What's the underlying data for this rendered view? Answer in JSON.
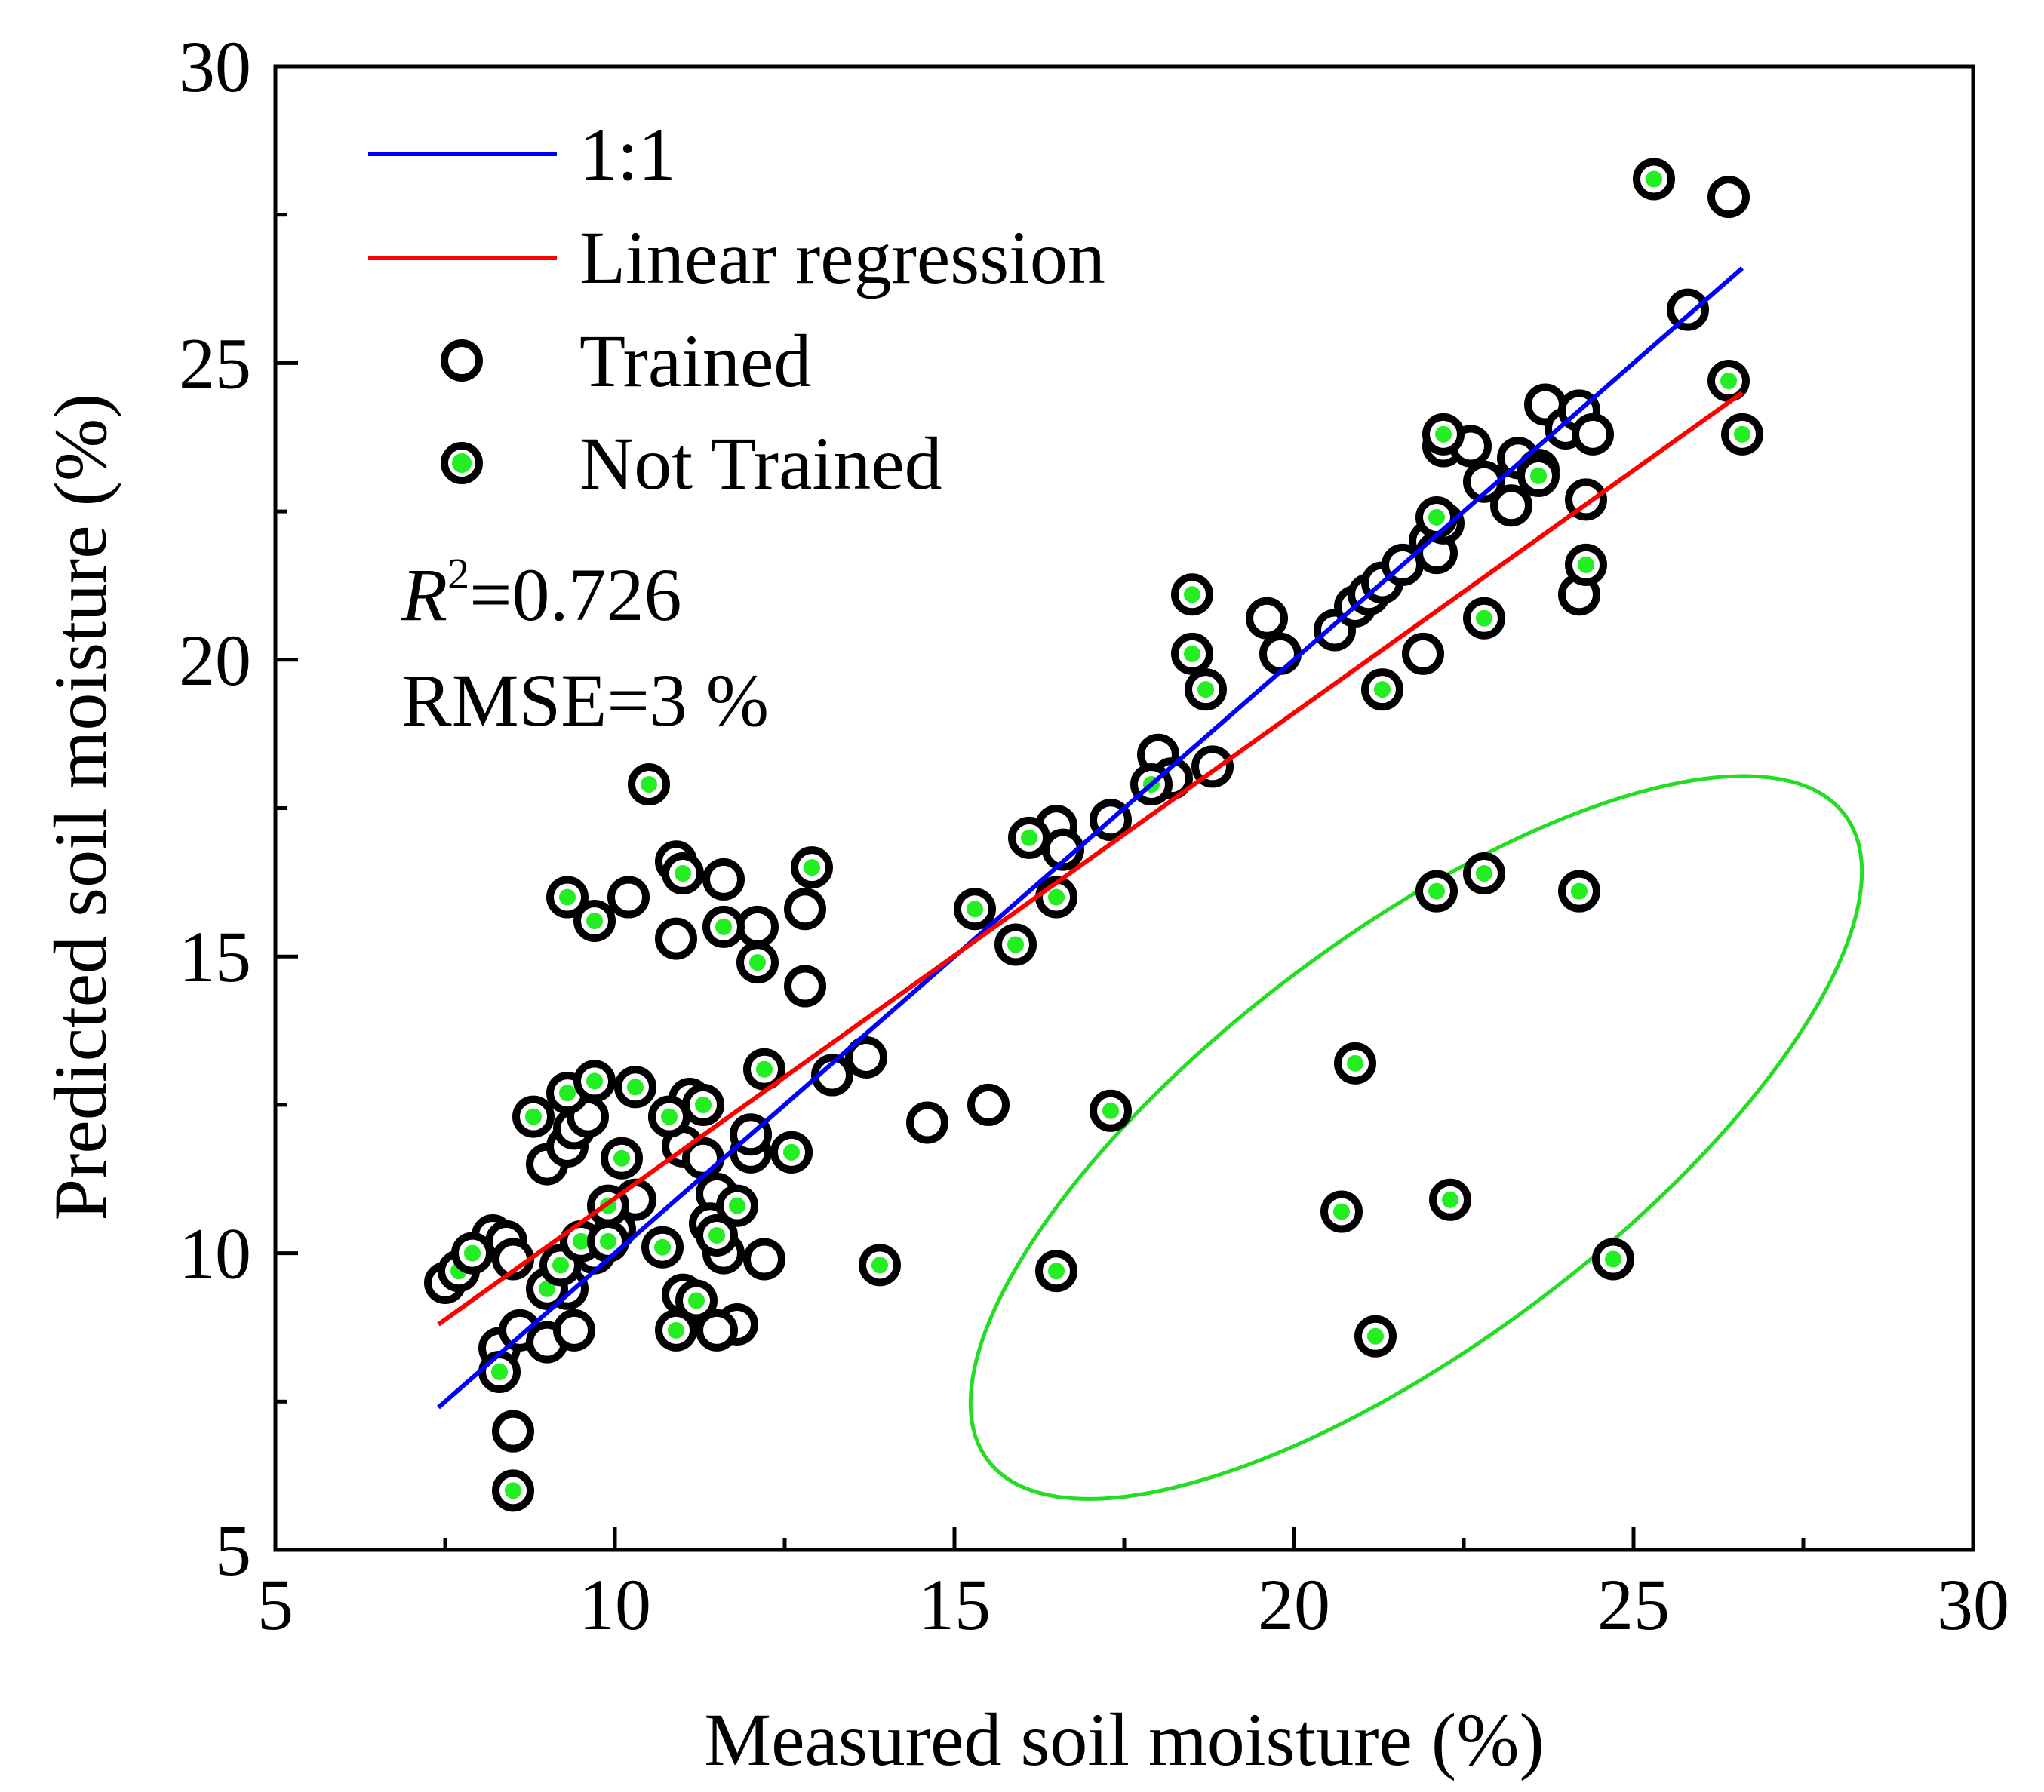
{
  "chart_data": {
    "type": "scatter",
    "xlabel": "Measured soil moisture (%)",
    "ylabel": "Predicted soil moisture (%)",
    "xlim": [
      5,
      30
    ],
    "ylim": [
      5,
      30
    ],
    "xticks": [
      5,
      10,
      15,
      20,
      25,
      30
    ],
    "yticks": [
      5,
      10,
      15,
      20,
      25,
      30
    ],
    "xtick_labels": [
      "5",
      "10",
      "15",
      "20",
      "25",
      "30"
    ],
    "ytick_labels": [
      "5",
      "10",
      "15",
      "20",
      "25",
      "30"
    ],
    "grid": false,
    "legend_position": "top-left",
    "legend": {
      "one_to_one": "1:1",
      "linear_regression": "Linear regression",
      "trained": "Trained",
      "not_trained": "Not Trained"
    },
    "stats": {
      "r2_symbol": "R",
      "r2_exponent": "2",
      "r2_value": "=0.726",
      "rmse": "RMSE=3 %"
    },
    "colors": {
      "one_to_one": "#0000ff",
      "regression": "#ff0000",
      "trained_edge": "#000000",
      "not_trained_fill": "#22ee22",
      "ellipse": "#22dd22"
    },
    "lines": {
      "one_to_one": {
        "x": [
          7.4,
          26.6
        ],
        "y": [
          7.4,
          26.6
        ]
      },
      "regression": {
        "x": [
          7.4,
          26.6
        ],
        "y": [
          8.8,
          24.5
        ]
      }
    },
    "series": [
      {
        "name": "Trained",
        "points": [
          [
            7.5,
            9.5
          ],
          [
            8.2,
            10.3
          ],
          [
            8.4,
            10.2
          ],
          [
            8.5,
            9.9
          ],
          [
            8.3,
            8.4
          ],
          [
            8.6,
            8.7
          ],
          [
            9.0,
            8.5
          ],
          [
            8.5,
            7.0
          ],
          [
            9.3,
            9.4
          ],
          [
            9.4,
            8.7
          ],
          [
            9.0,
            11.5
          ],
          [
            9.3,
            11.8
          ],
          [
            9.4,
            12.1
          ],
          [
            9.6,
            12.3
          ],
          [
            9.7,
            10.0
          ],
          [
            10.0,
            10.4
          ],
          [
            10.3,
            10.9
          ],
          [
            10.2,
            16.0
          ],
          [
            10.9,
            16.6
          ],
          [
            10.9,
            15.3
          ],
          [
            11.6,
            16.3
          ],
          [
            12.1,
            15.5
          ],
          [
            12.8,
            15.8
          ],
          [
            12.8,
            14.5
          ],
          [
            10.8,
            12.3
          ],
          [
            11.1,
            12.6
          ],
          [
            11.0,
            11.8
          ],
          [
            11.3,
            11.6
          ],
          [
            11.5,
            11.0
          ],
          [
            11.4,
            10.5
          ],
          [
            11.6,
            10.0
          ],
          [
            12.0,
            11.7
          ],
          [
            12.0,
            12.0
          ],
          [
            12.2,
            9.9
          ],
          [
            11.8,
            8.8
          ],
          [
            11.5,
            8.7
          ],
          [
            11.1,
            9.1
          ],
          [
            11.0,
            9.3
          ],
          [
            12.6,
            11.7
          ],
          [
            13.2,
            13.0
          ],
          [
            13.7,
            13.3
          ],
          [
            14.6,
            12.2
          ],
          [
            15.5,
            12.5
          ],
          [
            16.5,
            17.2
          ],
          [
            16.6,
            16.8
          ],
          [
            17.3,
            17.3
          ],
          [
            18.0,
            18.4
          ],
          [
            18.2,
            18.0
          ],
          [
            18.8,
            18.2
          ],
          [
            19.6,
            20.7
          ],
          [
            19.8,
            20.1
          ],
          [
            20.6,
            20.5
          ],
          [
            20.9,
            20.9
          ],
          [
            21.1,
            21.1
          ],
          [
            21.3,
            21.3
          ],
          [
            21.6,
            21.6
          ],
          [
            21.9,
            20.1
          ],
          [
            22.0,
            22.0
          ],
          [
            22.1,
            21.8
          ],
          [
            22.2,
            22.3
          ],
          [
            22.2,
            23.6
          ],
          [
            22.6,
            23.6
          ],
          [
            22.8,
            23.0
          ],
          [
            23.2,
            22.6
          ],
          [
            23.3,
            23.4
          ],
          [
            23.6,
            23.2
          ],
          [
            23.7,
            24.3
          ],
          [
            24.0,
            23.9
          ],
          [
            24.2,
            24.2
          ],
          [
            24.3,
            22.7
          ],
          [
            24.2,
            21.1
          ],
          [
            24.4,
            23.8
          ],
          [
            25.8,
            25.9
          ],
          [
            26.4,
            27.8
          ]
        ]
      },
      {
        "name": "Not Trained",
        "points": [
          [
            7.7,
            9.7
          ],
          [
            7.9,
            10.0
          ],
          [
            8.3,
            8.0
          ],
          [
            8.5,
            6.0
          ],
          [
            8.8,
            12.3
          ],
          [
            9.0,
            9.4
          ],
          [
            9.2,
            9.8
          ],
          [
            9.3,
            12.7
          ],
          [
            9.3,
            16.0
          ],
          [
            9.7,
            12.9
          ],
          [
            9.7,
            15.6
          ],
          [
            9.5,
            10.2
          ],
          [
            9.9,
            10.8
          ],
          [
            9.9,
            10.2
          ],
          [
            10.1,
            11.6
          ],
          [
            10.3,
            12.8
          ],
          [
            10.5,
            17.9
          ],
          [
            10.7,
            10.1
          ],
          [
            10.8,
            12.3
          ],
          [
            10.9,
            8.7
          ],
          [
            11.0,
            16.4
          ],
          [
            11.2,
            9.2
          ],
          [
            11.3,
            12.5
          ],
          [
            11.5,
            10.3
          ],
          [
            11.6,
            15.5
          ],
          [
            11.8,
            10.8
          ],
          [
            12.1,
            14.9
          ],
          [
            12.2,
            13.1
          ],
          [
            12.6,
            11.7
          ],
          [
            12.9,
            16.5
          ],
          [
            13.9,
            9.8
          ],
          [
            15.3,
            15.8
          ],
          [
            15.9,
            15.2
          ],
          [
            16.1,
            17.0
          ],
          [
            16.5,
            16.0
          ],
          [
            16.5,
            9.7
          ],
          [
            17.3,
            12.4
          ],
          [
            17.9,
            17.9
          ],
          [
            18.5,
            20.1
          ],
          [
            18.5,
            21.1
          ],
          [
            18.7,
            19.5
          ],
          [
            20.7,
            10.7
          ],
          [
            20.9,
            13.2
          ],
          [
            21.2,
            8.6
          ],
          [
            21.3,
            19.5
          ],
          [
            22.1,
            16.1
          ],
          [
            22.1,
            22.4
          ],
          [
            22.3,
            10.9
          ],
          [
            22.2,
            23.8
          ],
          [
            22.8,
            16.4
          ],
          [
            22.8,
            20.7
          ],
          [
            23.6,
            23.1
          ],
          [
            24.2,
            16.1
          ],
          [
            24.3,
            21.6
          ],
          [
            24.7,
            9.9
          ],
          [
            25.3,
            28.1
          ],
          [
            26.4,
            24.7
          ],
          [
            26.6,
            23.8
          ]
        ]
      }
    ],
    "annotations": [
      {
        "type": "ellipse",
        "label": "",
        "center": [
          21.8,
          11.95
        ],
        "semi_major_data": 7.9,
        "semi_minor_data": 3.0,
        "angle_deg": 37
      }
    ]
  }
}
